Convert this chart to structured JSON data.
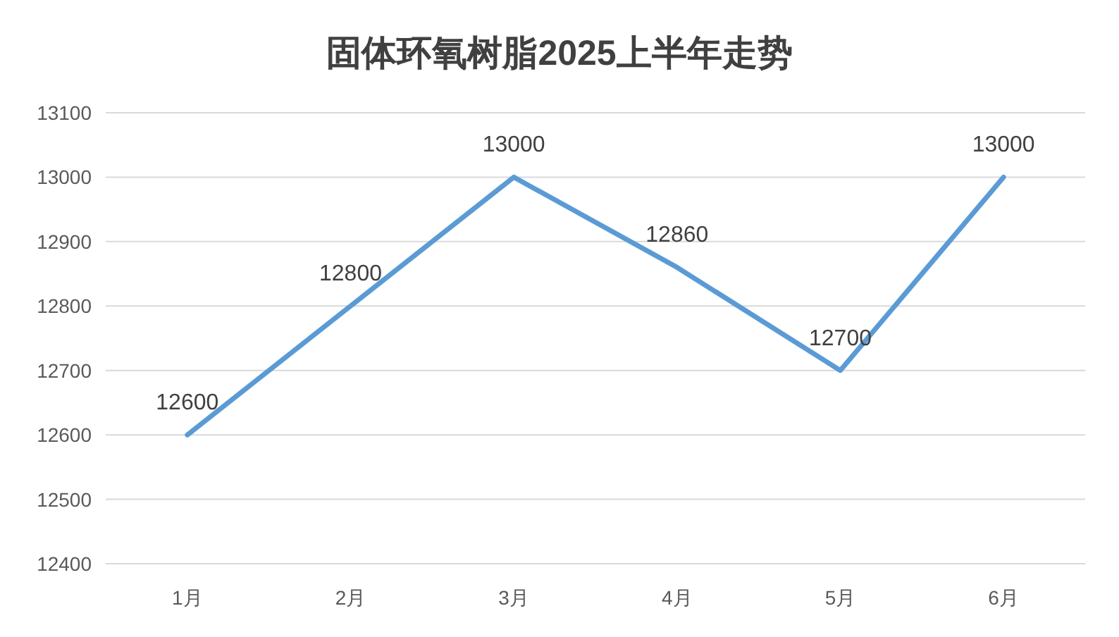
{
  "chart_data": {
    "type": "line",
    "title": "固体环氧树脂2025上半年走势",
    "categories": [
      "1月",
      "2月",
      "3月",
      "4月",
      "5月",
      "6月"
    ],
    "series": [
      {
        "color": "#5b9bd5",
        "values": [
          12600,
          12800,
          13000,
          12860,
          12700,
          13000
        ]
      }
    ],
    "ylim": [
      12400,
      13100
    ],
    "yticks": [
      12400,
      12500,
      12600,
      12700,
      12800,
      12900,
      13000,
      13100
    ],
    "grid": "y",
    "data_labels": true,
    "line_style": "solid"
  }
}
